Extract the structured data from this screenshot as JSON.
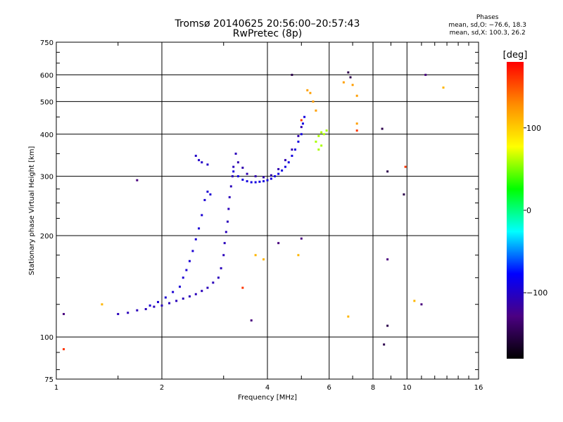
{
  "chart_data": {
    "type": "scatter",
    "title": "Tromsø 20140625 20:56:00–20:57:43",
    "subtitle": "RwPretec (8p)",
    "xlabel": "Frequency [MHz]",
    "ylabel": "Stationary phase Virtual Height [km]",
    "xscale": "log",
    "yscale": "log",
    "xlim": [
      1,
      16
    ],
    "ylim": [
      75,
      750
    ],
    "xticks": [
      1,
      2,
      4,
      6,
      8,
      10,
      16
    ],
    "yticks": [
      75,
      100,
      200,
      300,
      400,
      500,
      600,
      750
    ],
    "grid": true,
    "phase_stats": {
      "heading": "Phases",
      "line_o": "mean, sd,O: −76.6, 18.3",
      "line_x": "mean, sd,X: 100.3, 26.2"
    },
    "colorbar": {
      "label": "[deg]",
      "range": [
        -180,
        180
      ],
      "ticks": [
        100,
        0,
        -100
      ],
      "tick_labels": [
        "100",
        "0",
        "−100"
      ],
      "colors": [
        "#000000",
        "#4b0082",
        "#0000ff",
        "#00ffff",
        "#00ff00",
        "#ffff00",
        "#ff8c00",
        "#ff0000"
      ]
    },
    "series": [
      {
        "phase": -105,
        "points": [
          [
            1.5,
            117
          ],
          [
            1.6,
            118
          ],
          [
            1.7,
            120
          ],
          [
            1.8,
            121
          ],
          [
            1.9,
            123
          ],
          [
            2.0,
            124
          ],
          [
            2.1,
            126
          ],
          [
            2.2,
            128
          ],
          [
            2.3,
            130
          ],
          [
            2.4,
            132
          ],
          [
            2.5,
            134
          ],
          [
            2.6,
            137
          ],
          [
            2.7,
            140
          ],
          [
            2.8,
            145
          ],
          [
            2.9,
            150
          ],
          [
            2.95,
            160
          ],
          [
            3.0,
            175
          ],
          [
            3.02,
            190
          ],
          [
            3.05,
            205
          ],
          [
            3.08,
            220
          ],
          [
            3.1,
            240
          ],
          [
            3.12,
            260
          ],
          [
            3.15,
            280
          ],
          [
            3.18,
            300
          ],
          [
            3.2,
            320
          ],
          [
            3.25,
            350
          ]
        ]
      },
      {
        "phase": -95,
        "points": [
          [
            1.85,
            124
          ],
          [
            1.95,
            127
          ],
          [
            2.05,
            131
          ],
          [
            2.15,
            136
          ],
          [
            2.25,
            141
          ],
          [
            2.3,
            150
          ],
          [
            2.35,
            158
          ],
          [
            2.4,
            168
          ],
          [
            2.45,
            180
          ],
          [
            2.5,
            195
          ],
          [
            2.55,
            210
          ],
          [
            2.6,
            230
          ],
          [
            2.65,
            255
          ],
          [
            2.7,
            270
          ],
          [
            2.75,
            265
          ]
        ]
      },
      {
        "phase": -100,
        "points": [
          [
            2.5,
            345
          ],
          [
            2.55,
            335
          ],
          [
            2.6,
            330
          ],
          [
            2.7,
            325
          ]
        ]
      },
      {
        "phase": -90,
        "points": [
          [
            3.2,
            310
          ],
          [
            3.3,
            300
          ],
          [
            3.4,
            293
          ],
          [
            3.5,
            290
          ],
          [
            3.6,
            288
          ],
          [
            3.7,
            288
          ],
          [
            3.8,
            289
          ],
          [
            3.9,
            290
          ],
          [
            4.0,
            292
          ],
          [
            4.1,
            295
          ],
          [
            4.2,
            300
          ],
          [
            4.3,
            305
          ],
          [
            4.4,
            312
          ],
          [
            4.5,
            320
          ],
          [
            4.6,
            330
          ],
          [
            4.7,
            345
          ],
          [
            4.8,
            360
          ],
          [
            4.9,
            380
          ],
          [
            5.0,
            400
          ],
          [
            5.05,
            430
          ],
          [
            5.1,
            450
          ]
        ]
      },
      {
        "phase": -110,
        "points": [
          [
            3.3,
            330
          ],
          [
            3.4,
            318
          ],
          [
            3.5,
            305
          ],
          [
            3.7,
            300
          ],
          [
            3.9,
            298
          ],
          [
            4.1,
            302
          ],
          [
            4.3,
            315
          ],
          [
            4.5,
            335
          ],
          [
            4.7,
            360
          ],
          [
            4.9,
            395
          ],
          [
            5.0,
            420
          ]
        ]
      },
      {
        "phase": 60,
        "points": [
          [
            5.5,
            380
          ],
          [
            5.6,
            395
          ],
          [
            5.7,
            405
          ],
          [
            5.8,
            400
          ],
          [
            5.9,
            410
          ],
          [
            5.6,
            360
          ],
          [
            5.7,
            370
          ]
        ]
      },
      {
        "phase": 120,
        "points": [
          [
            5.2,
            540
          ],
          [
            5.3,
            530
          ],
          [
            5.4,
            500
          ],
          [
            5.5,
            470
          ],
          [
            6.6,
            570
          ],
          [
            7.0,
            560
          ],
          [
            7.2,
            520
          ],
          [
            7.2,
            430
          ]
        ]
      },
      {
        "phase": -150,
        "points": [
          [
            6.8,
            610
          ],
          [
            6.9,
            590
          ],
          [
            8.5,
            415
          ],
          [
            8.8,
            310
          ],
          [
            9.8,
            265
          ],
          [
            4.7,
            600
          ],
          [
            8.6,
            95
          ],
          [
            8.8,
            108
          ]
        ]
      },
      {
        "phase": 160,
        "points": [
          [
            3.4,
            140
          ],
          [
            7.2,
            410
          ],
          [
            9.9,
            320
          ],
          [
            1.05,
            92
          ],
          [
            5.0,
            440
          ]
        ]
      },
      {
        "phase": 110,
        "points": [
          [
            3.7,
            175
          ],
          [
            4.9,
            175
          ],
          [
            3.9,
            170
          ],
          [
            1.35,
            125
          ],
          [
            10.5,
            128
          ],
          [
            12.7,
            550
          ],
          [
            6.8,
            115
          ]
        ]
      },
      {
        "phase": -130,
        "points": [
          [
            1.05,
            117
          ],
          [
            1.7,
            292
          ],
          [
            11.3,
            600
          ],
          [
            11.0,
            125
          ],
          [
            8.8,
            170
          ],
          [
            3.6,
            112
          ],
          [
            4.3,
            190
          ],
          [
            5.0,
            196
          ]
        ]
      }
    ]
  }
}
